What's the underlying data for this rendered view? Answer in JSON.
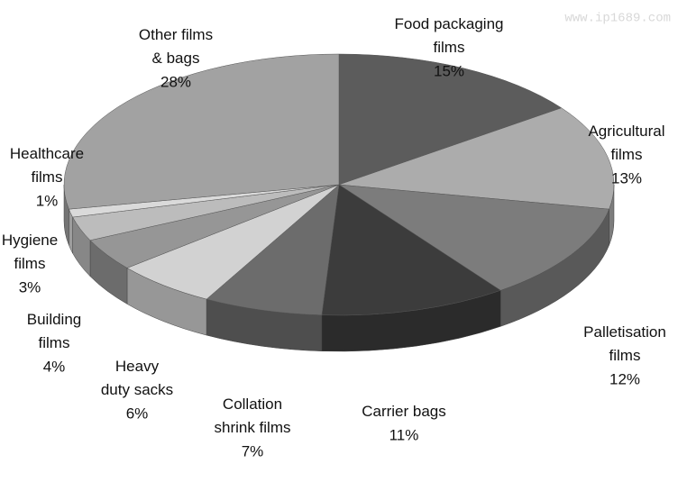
{
  "chart_data": {
    "type": "pie",
    "watermark": "www.ip1689.com",
    "categories": [
      "Food packaging films",
      "Agricultural films",
      "Palletisation films",
      "Carrier bags",
      "Collation shrink films",
      "Heavy duty sacks",
      "Building films",
      "Hygiene films",
      "Healthcare films",
      "Other films & bags"
    ],
    "values": [
      15,
      13,
      12,
      11,
      7,
      6,
      4,
      3,
      1,
      28
    ],
    "value_labels": [
      "15%",
      "13%",
      "12%",
      "11%",
      "7%",
      "6%",
      "4%",
      "3%",
      "1%",
      "28%"
    ],
    "colors": [
      "#5c5c5c",
      "#acacac",
      "#7c7c7c",
      "#3c3c3c",
      "#6c6c6c",
      "#d2d2d2",
      "#969696",
      "#bcbcbc",
      "#dadada",
      "#a2a2a2"
    ]
  }
}
